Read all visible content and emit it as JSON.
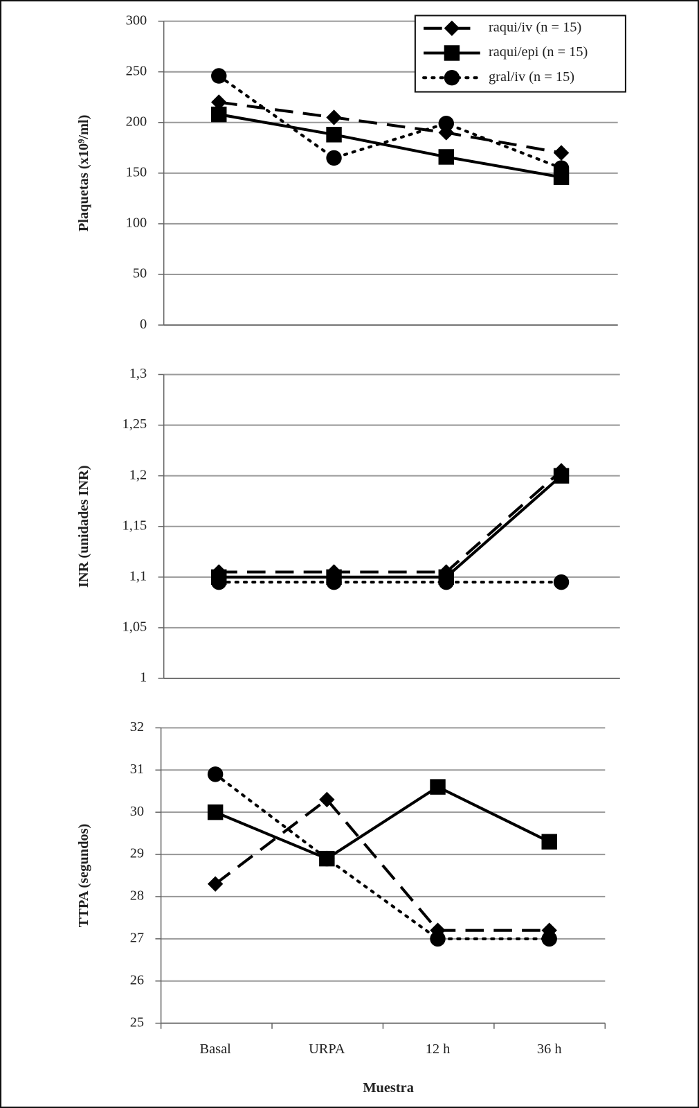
{
  "chart_data": [
    {
      "type": "line",
      "ylabel": "Plaquetas (x10⁹/ml)",
      "categories": [
        null,
        null,
        null,
        null
      ],
      "ylim": [
        0,
        300
      ],
      "yticks": [
        0,
        50,
        100,
        150,
        200,
        250,
        300
      ],
      "grid": true,
      "legend": "top-right",
      "series": [
        {
          "name": "raqui/iv (n = 15)",
          "color": "#000000",
          "line_style": "dashed",
          "marker": "diamond",
          "values": [
            220,
            205,
            190,
            170
          ]
        },
        {
          "name": "raqui/epi (n = 15)",
          "color": "#000000",
          "line_style": "solid",
          "marker": "square",
          "values": [
            208,
            188,
            166,
            146
          ]
        },
        {
          "name": "gral/iv (n = 15)",
          "color": "#000000",
          "line_style": "dotted",
          "marker": "circle",
          "values": [
            246,
            165,
            199,
            155
          ]
        }
      ]
    },
    {
      "type": "line",
      "ylabel": "INR (unidades INR)",
      "categories": [
        null,
        null,
        null,
        null
      ],
      "ylim": [
        1,
        1.3
      ],
      "yticks": [
        1,
        {
          "value": 1.05,
          "label": "1,05"
        },
        {
          "value": 1.1,
          "label": "1,1"
        },
        {
          "value": 1.15,
          "label": "1,15"
        },
        {
          "value": 1.2,
          "label": "1,2"
        },
        {
          "value": 1.25,
          "label": "1,25"
        },
        {
          "value": 1.3,
          "label": "1,3"
        }
      ],
      "grid": true,
      "series": [
        {
          "color": "#000000",
          "line_style": "dashed",
          "marker": "diamond",
          "values": [
            1.105,
            1.105,
            1.105,
            1.205
          ]
        },
        {
          "color": "#000000",
          "line_style": "solid",
          "marker": "square",
          "values": [
            1.1,
            1.1,
            1.1,
            1.2
          ]
        },
        {
          "color": "#000000",
          "line_style": "dotted",
          "marker": "circle",
          "values": [
            1.095,
            1.095,
            1.095,
            1.095
          ]
        }
      ]
    },
    {
      "type": "line",
      "ylabel": "TTPA (segundos)",
      "xlabel": "Muestra",
      "categories": [
        "Basal",
        "URPA",
        "12 h",
        "36 h"
      ],
      "ylim": [
        25,
        32
      ],
      "yticks": [
        25,
        26,
        27,
        28,
        29,
        30,
        31,
        32
      ],
      "grid": true,
      "series": [
        {
          "color": "#000000",
          "line_style": "dashed",
          "marker": "diamond",
          "values": [
            28.3,
            30.3,
            27.2,
            27.2
          ]
        },
        {
          "color": "#000000",
          "line_style": "solid",
          "marker": "square",
          "values": [
            30,
            28.9,
            30.6,
            29.3
          ]
        },
        {
          "color": "#000000",
          "line_style": "dotted",
          "marker": "circle",
          "values": [
            30.9,
            28.9,
            27,
            27
          ]
        }
      ]
    }
  ]
}
